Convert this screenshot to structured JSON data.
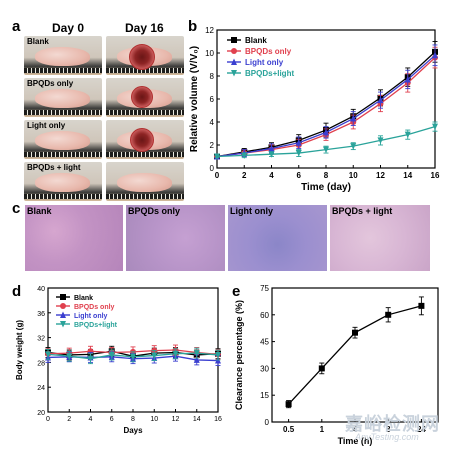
{
  "panel_a": {
    "letter": "a",
    "col_labels": [
      "Day 0",
      "Day 16"
    ],
    "row_labels": [
      "Blank",
      "BPQDs only",
      "Light only",
      "BPQDs + light"
    ]
  },
  "panel_c": {
    "letter": "c",
    "labels": [
      "Blank",
      "BPQDs only",
      "Light only",
      "BPQDs + light"
    ]
  },
  "watermark": {
    "text": "嘉峪检测网",
    "sub": "AnyTesting.com"
  },
  "chart_data": [
    {
      "panel": "b",
      "type": "line",
      "xlabel": "Time (day)",
      "ylabel": "Relative volume (V/V₀)",
      "xlim": [
        0,
        16
      ],
      "ylim": [
        0,
        12
      ],
      "x_ticks": [
        0,
        2,
        4,
        6,
        8,
        10,
        12,
        14,
        16
      ],
      "y_ticks": [
        0,
        2,
        4,
        6,
        8,
        10,
        12
      ],
      "x": [
        0,
        2,
        4,
        6,
        8,
        10,
        12,
        14,
        16
      ],
      "legend_position": "top-left",
      "series": [
        {
          "name": "Blank",
          "color": "#000000",
          "marker": "square",
          "values": [
            1.0,
            1.4,
            1.8,
            2.4,
            3.3,
            4.5,
            6.1,
            7.9,
            10.1
          ],
          "errors": [
            0.1,
            0.3,
            0.4,
            0.5,
            0.6,
            0.6,
            0.7,
            0.8,
            0.9
          ]
        },
        {
          "name": "BPQDs only",
          "color": "#e0404e",
          "marker": "circle",
          "values": [
            1.0,
            1.3,
            1.6,
            2.0,
            2.9,
            4.0,
            5.6,
            7.4,
            9.6
          ],
          "errors": [
            0.1,
            0.3,
            0.4,
            0.5,
            0.5,
            0.6,
            0.7,
            0.8,
            0.9
          ]
        },
        {
          "name": "Light only",
          "color": "#3b3fd0",
          "marker": "triangle",
          "values": [
            1.0,
            1.3,
            1.7,
            2.2,
            3.1,
            4.3,
            5.9,
            7.7,
            9.8
          ],
          "errors": [
            0.1,
            0.3,
            0.4,
            0.5,
            0.5,
            0.6,
            0.7,
            0.8,
            0.9
          ]
        },
        {
          "name": "BPQDs+light",
          "color": "#2aa39a",
          "marker": "triangle-down",
          "values": [
            1.0,
            1.1,
            1.2,
            1.3,
            1.6,
            1.9,
            2.4,
            2.9,
            3.6
          ],
          "errors": [
            0.1,
            0.2,
            0.2,
            0.3,
            0.3,
            0.3,
            0.4,
            0.4,
            0.4
          ]
        }
      ]
    },
    {
      "panel": "d",
      "type": "line",
      "xlabel": "Days",
      "ylabel": "Body weight (g)",
      "xlim": [
        0,
        16
      ],
      "ylim": [
        20,
        40
      ],
      "x_ticks": [
        0,
        2,
        4,
        6,
        8,
        10,
        12,
        14,
        16
      ],
      "y_ticks": [
        20,
        24,
        28,
        32,
        36,
        40
      ],
      "x": [
        0,
        2,
        4,
        6,
        8,
        10,
        12,
        14,
        16
      ],
      "legend_position": "top-left",
      "series": [
        {
          "name": "Blank",
          "color": "#000000",
          "marker": "square",
          "values": [
            29.6,
            29.2,
            29.3,
            29.8,
            29.0,
            29.5,
            29.6,
            29.2,
            29.4
          ],
          "errors": [
            0.8,
            0.8,
            0.8,
            0.8,
            0.8,
            0.8,
            0.8,
            0.8,
            0.8
          ]
        },
        {
          "name": "BPQDs only",
          "color": "#e0404e",
          "marker": "circle",
          "values": [
            29.4,
            29.5,
            29.8,
            29.6,
            29.7,
            29.9,
            30.0,
            29.6,
            29.3
          ],
          "errors": [
            0.8,
            0.8,
            0.8,
            0.8,
            0.8,
            0.8,
            0.8,
            0.8,
            0.8
          ]
        },
        {
          "name": "Light only",
          "color": "#3b3fd0",
          "marker": "triangle",
          "values": [
            28.8,
            28.9,
            28.8,
            28.9,
            28.6,
            28.7,
            29.0,
            28.4,
            28.3
          ],
          "errors": [
            0.8,
            0.8,
            0.8,
            0.8,
            0.8,
            0.8,
            0.8,
            0.8,
            0.8
          ]
        },
        {
          "name": "BPQDs+light",
          "color": "#2aa39a",
          "marker": "triangle-down",
          "values": [
            29.3,
            29.0,
            28.6,
            29.2,
            28.9,
            29.1,
            29.4,
            29.5,
            29.2
          ],
          "errors": [
            0.8,
            0.8,
            0.8,
            0.8,
            0.8,
            0.8,
            0.8,
            0.8,
            0.8
          ]
        }
      ]
    },
    {
      "panel": "e",
      "type": "line",
      "xlabel": "Time (h)",
      "ylabel": "Clearance percentage (%)",
      "ylim": [
        0,
        75
      ],
      "categories": [
        "0.5",
        "1",
        "4",
        "8",
        "24"
      ],
      "y_ticks": [
        0,
        15,
        30,
        45,
        60,
        75
      ],
      "series": [
        {
          "color": "#000000",
          "marker": "square",
          "values": [
            10,
            30,
            50,
            60,
            65
          ],
          "errors": [
            2,
            3,
            3,
            4,
            5
          ]
        }
      ]
    }
  ]
}
